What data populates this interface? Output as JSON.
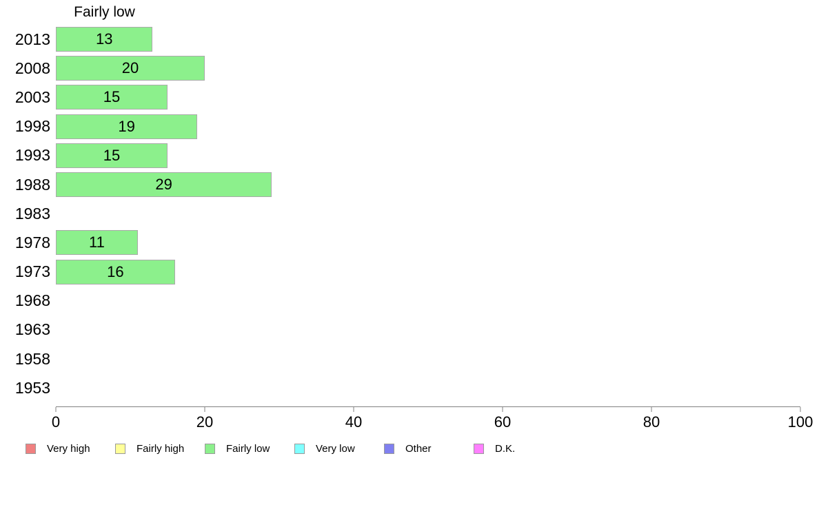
{
  "chart_data": {
    "type": "bar",
    "orientation": "horizontal",
    "title": "Fairly low",
    "categories": [
      "2013",
      "2008",
      "2003",
      "1998",
      "1993",
      "1988",
      "1983",
      "1978",
      "1973",
      "1968",
      "1963",
      "1958",
      "1953"
    ],
    "series": [
      {
        "name": "Fairly low",
        "color": "#8CF08C",
        "values": [
          13,
          20,
          15,
          19,
          15,
          29,
          null,
          11,
          16,
          null,
          null,
          null,
          null
        ]
      }
    ],
    "xlim": [
      0,
      100
    ],
    "x_ticks": [
      "0",
      "20",
      "40",
      "60",
      "80",
      "100"
    ],
    "grid": false,
    "bar_border_color": "#aaaaaa",
    "axis_color": "#808080",
    "legend_position": "bottom",
    "legend": [
      {
        "label": "Very high",
        "color": "#F08080"
      },
      {
        "label": "Fairly high",
        "color": "#FFFF99"
      },
      {
        "label": "Fairly low",
        "color": "#8CF08C"
      },
      {
        "label": "Very low",
        "color": "#80FFFF"
      },
      {
        "label": "Other",
        "color": "#8080F0"
      },
      {
        "label": "D.K.",
        "color": "#FF80FF"
      }
    ]
  }
}
